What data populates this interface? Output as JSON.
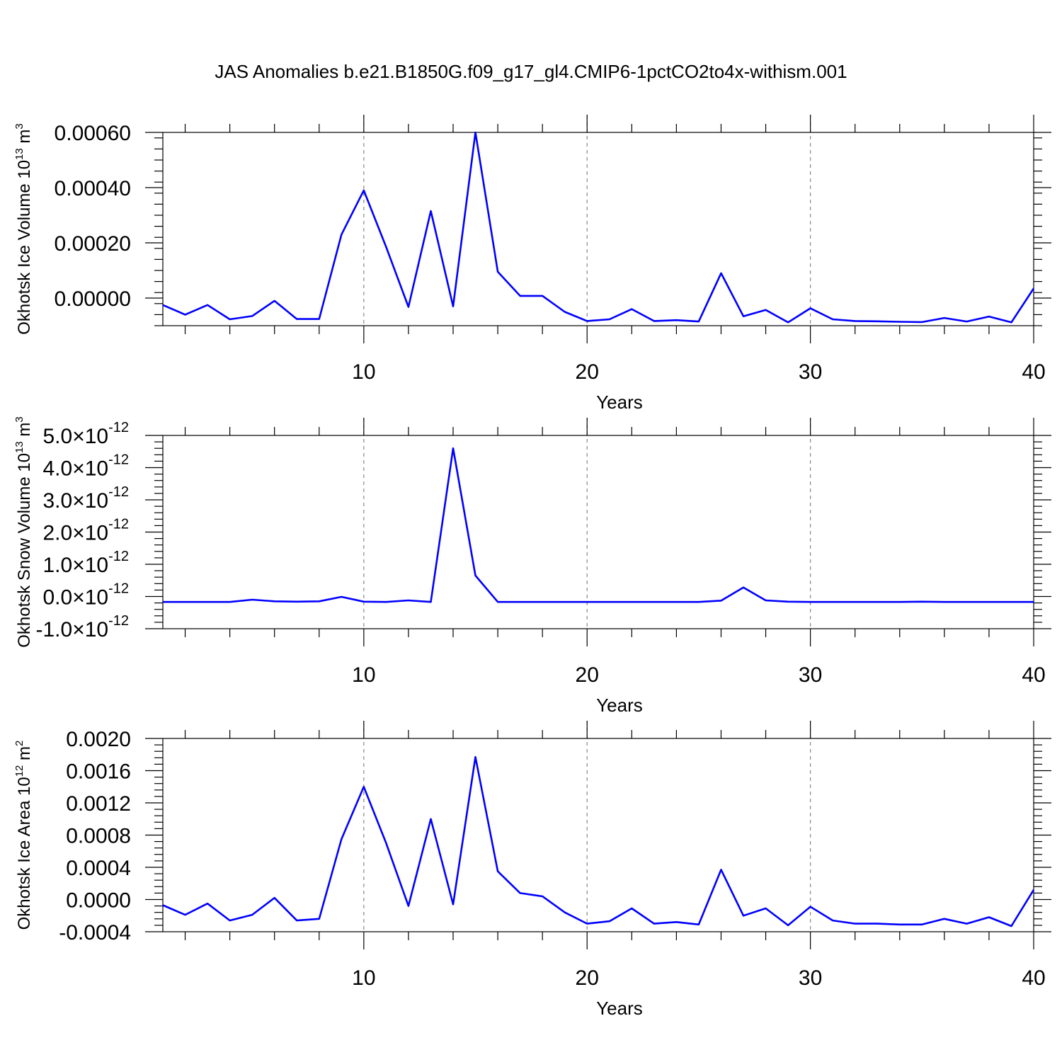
{
  "title": "JAS Anomalies b.e21.B1850G.f09_g17_gl4.CMIP6-1pctCO2to4x-withism.001",
  "colors": {
    "line": "#0000ff",
    "grid": "#888888",
    "axis": "#000000"
  },
  "chart_data": [
    {
      "type": "line",
      "xlabel": "Years",
      "ylabel": {
        "text": "Okhotsk Ice Volume 10",
        "sup": "13",
        "unit": " m",
        "unit_sup": "3"
      },
      "xlim": [
        1,
        40
      ],
      "ylim": [
        -0.0001,
        0.0006
      ],
      "xticks": [
        10,
        20,
        30,
        40
      ],
      "xgrid": [
        10,
        20,
        30
      ],
      "yticks": [
        0.0,
        0.0002,
        0.0004,
        0.0006
      ],
      "ytick_labels": [
        "0.00000",
        "0.00020",
        "0.00040",
        "0.00060"
      ],
      "x": [
        1,
        2,
        3,
        4,
        5,
        6,
        7,
        8,
        9,
        10,
        11,
        12,
        13,
        14,
        15,
        16,
        17,
        18,
        19,
        20,
        21,
        22,
        23,
        24,
        25,
        26,
        27,
        28,
        29,
        30,
        31,
        32,
        33,
        34,
        35,
        36,
        37,
        38,
        39,
        40
      ],
      "values": [
        -2.5e-05,
        -6e-05,
        -2.5e-05,
        -7.7e-05,
        -6.5e-05,
        -1e-05,
        -7.6e-05,
        -7.6e-05,
        0.00023,
        0.00039,
        0.000185,
        -3.2e-05,
        0.000315,
        -3e-05,
        0.0006,
        9.5e-05,
        8e-06,
        8e-06,
        -5e-05,
        -8.3e-05,
        -7.7e-05,
        -4e-05,
        -8.3e-05,
        -8e-05,
        -8.5e-05,
        9e-05,
        -6.6e-05,
        -4.3e-05,
        -8.8e-05,
        -3.7e-05,
        -7.7e-05,
        -8.3e-05,
        -8.4e-05,
        -8.6e-05,
        -8.7e-05,
        -7.2e-05,
        -8.5e-05,
        -6.7e-05,
        -8.8e-05,
        3.5e-05
      ]
    },
    {
      "type": "line",
      "xlabel": "Years",
      "ylabel": {
        "text": "Okhotsk Snow Volume 10",
        "sup": "13",
        "unit": " m",
        "unit_sup": "3"
      },
      "xlim": [
        1,
        40
      ],
      "ylim": [
        -1e-12,
        5e-12
      ],
      "xticks": [
        10,
        20,
        30,
        40
      ],
      "xgrid": [
        10,
        20,
        30
      ],
      "yticks": [
        -1e-12,
        0.0,
        1e-12,
        2e-12,
        3e-12,
        4e-12,
        5e-12
      ],
      "ytick_labels": [
        {
          "mant": "-1.0",
          "times": "×",
          "base": "10",
          "exp": "-12"
        },
        {
          "mant": "0.0",
          "times": "×",
          "base": "10",
          "exp": "-12"
        },
        {
          "mant": "1.0",
          "times": "×",
          "base": "10",
          "exp": "-12"
        },
        {
          "mant": "2.0",
          "times": "×",
          "base": "10",
          "exp": "-12"
        },
        {
          "mant": "3.0",
          "times": "×",
          "base": "10",
          "exp": "-12"
        },
        {
          "mant": "4.0",
          "times": "×",
          "base": "10",
          "exp": "-12"
        },
        {
          "mant": "5.0",
          "times": "×",
          "base": "10",
          "exp": "-12"
        }
      ],
      "x": [
        1,
        2,
        3,
        4,
        5,
        6,
        7,
        8,
        9,
        10,
        11,
        12,
        13,
        14,
        15,
        16,
        17,
        18,
        19,
        20,
        21,
        22,
        23,
        24,
        25,
        26,
        27,
        28,
        29,
        30,
        31,
        32,
        33,
        34,
        35,
        36,
        37,
        38,
        39,
        40
      ],
      "values": [
        -1.7e-13,
        -1.7e-13,
        -1.7e-13,
        -1.7e-13,
        -1e-13,
        -1.5e-13,
        -1.6e-13,
        -1.5e-13,
        -1e-14,
        -1.6e-13,
        -1.7e-13,
        -1.2e-13,
        -1.7e-13,
        4.6e-12,
        6.5e-13,
        -1.7e-13,
        -1.7e-13,
        -1.7e-13,
        -1.7e-13,
        -1.7e-13,
        -1.7e-13,
        -1.7e-13,
        -1.7e-13,
        -1.7e-13,
        -1.7e-13,
        -1.3e-13,
        2.8e-13,
        -1.2e-13,
        -1.6e-13,
        -1.7e-13,
        -1.7e-13,
        -1.7e-13,
        -1.7e-13,
        -1.7e-13,
        -1.6e-13,
        -1.7e-13,
        -1.7e-13,
        -1.7e-13,
        -1.7e-13,
        -1.7e-13
      ]
    },
    {
      "type": "line",
      "xlabel": "Years",
      "ylabel": {
        "text": "Okhotsk Ice Area 10",
        "sup": "12",
        "unit": " m",
        "unit_sup": "2"
      },
      "xlim": [
        1,
        40
      ],
      "ylim": [
        -0.0004,
        0.002
      ],
      "xticks": [
        10,
        20,
        30,
        40
      ],
      "xgrid": [
        10,
        20,
        30
      ],
      "yticks": [
        -0.0004,
        0.0,
        0.0004,
        0.0008,
        0.0012,
        0.0016,
        0.002
      ],
      "ytick_labels": [
        "-0.0004",
        "0.0000",
        "0.0004",
        "0.0008",
        "0.0012",
        "0.0016",
        "0.0020"
      ],
      "x": [
        1,
        2,
        3,
        4,
        5,
        6,
        7,
        8,
        9,
        10,
        11,
        12,
        13,
        14,
        15,
        16,
        17,
        18,
        19,
        20,
        21,
        22,
        23,
        24,
        25,
        26,
        27,
        28,
        29,
        30,
        31,
        32,
        33,
        34,
        35,
        36,
        37,
        38,
        39,
        40
      ],
      "values": [
        -7e-05,
        -0.00019,
        -5e-05,
        -0.00026,
        -0.00019,
        2e-05,
        -0.00026,
        -0.00024,
        0.00075,
        0.0014,
        0.0007,
        -8e-05,
        0.001,
        -6e-05,
        0.00177,
        0.00035,
        8e-05,
        4e-05,
        -0.00016,
        -0.0003,
        -0.00027,
        -0.00011,
        -0.0003,
        -0.00028,
        -0.00031,
        0.00037,
        -0.0002,
        -0.00011,
        -0.00032,
        -9e-05,
        -0.00026,
        -0.0003,
        -0.0003,
        -0.00031,
        -0.00031,
        -0.00024,
        -0.0003,
        -0.00022,
        -0.00033,
        0.00012
      ]
    }
  ]
}
